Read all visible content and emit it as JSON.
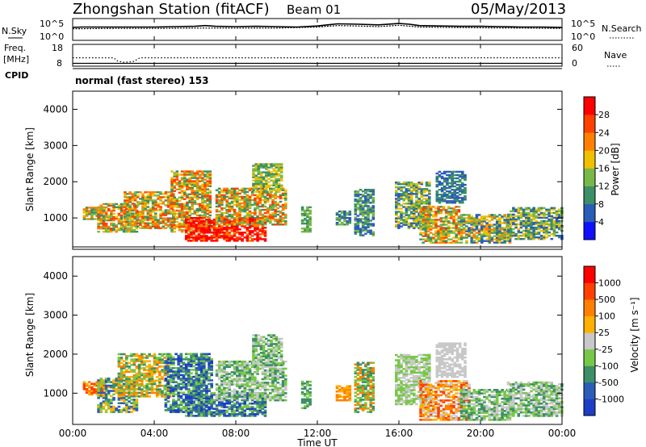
{
  "header": {
    "station": "Zhongshan Station (fitACF)",
    "beam": "Beam 01",
    "date": "05/May/2013"
  },
  "mode_label": "normal (fast stereo) 153",
  "xaxis": {
    "label": "Time UT",
    "ticks": [
      "00:00",
      "04:00",
      "08:00",
      "12:00",
      "16:00",
      "20:00",
      "00:00"
    ],
    "tick_hours": [
      0,
      4,
      8,
      12,
      16,
      20,
      24
    ]
  },
  "chart_data": [
    {
      "type": "line",
      "panel": "noise",
      "left_label": "N.Sky",
      "right_label": "N.Search",
      "left_ticks": [
        "10^5",
        "10^0"
      ],
      "right_ticks": [
        "10^5",
        "10^0"
      ],
      "series": [
        {
          "x": [
            0,
            0.5,
            1,
            2,
            3,
            4,
            5,
            6,
            6.5,
            7,
            8,
            9,
            10,
            11,
            12,
            12.5,
            13,
            14,
            15,
            16,
            16.5,
            17,
            18,
            19,
            20,
            21,
            22,
            23,
            24
          ],
          "y": [
            3.2,
            3.3,
            3.3,
            3.3,
            3.3,
            3.3,
            3.4,
            3.5,
            3.7,
            3.5,
            3.4,
            3.5,
            3.4,
            3.3,
            3.6,
            3.9,
            4.2,
            4.1,
            3.9,
            4.3,
            4.1,
            3.7,
            3.6,
            3.5,
            3.5,
            3.4,
            3.3,
            3.3,
            3.2
          ]
        },
        {
          "x": [
            0,
            2,
            4,
            6,
            8,
            10,
            12,
            13,
            14,
            15,
            16,
            17,
            18,
            20,
            22,
            24
          ],
          "y": [
            2.8,
            2.9,
            2.9,
            3.0,
            3.0,
            3.0,
            3.3,
            3.7,
            3.6,
            3.4,
            3.8,
            3.3,
            3.2,
            3.1,
            3.0,
            2.9
          ]
        }
      ]
    },
    {
      "type": "line",
      "panel": "frequency",
      "left_label": "Freq.",
      "left_unit": "[MHz]",
      "left_ticks": [
        "18",
        "8"
      ],
      "right_label": "Nave",
      "right_ticks": [
        "60",
        "0"
      ],
      "cpid_label": "CPID",
      "series": [
        {
          "name": "freq",
          "x": [
            0,
            2,
            2.2,
            2.5,
            2.8,
            3,
            3.3,
            24
          ],
          "y": [
            11.8,
            11.8,
            10,
            9.3,
            9.5,
            9.8,
            11.8,
            11.8
          ]
        },
        {
          "name": "nave",
          "x": [
            0,
            24
          ],
          "y": [
            4,
            4
          ]
        }
      ]
    },
    {
      "type": "heatmap",
      "panel": "power",
      "ylabel": "Slant Range [km]",
      "yticks": [
        "1000",
        "2000",
        "3000",
        "4000"
      ],
      "ylim": [
        200,
        4500
      ],
      "colorbar_label": "Power [dB]",
      "colorbar_ticks": [
        "4",
        "8",
        "12",
        "16",
        "20",
        "24",
        "28"
      ],
      "colorbar_colors": [
        "#1010ff",
        "#2b5cb8",
        "#3c8f66",
        "#78b848",
        "#f0c000",
        "#ff8000",
        "#ff4000",
        "#ff0000"
      ],
      "blobs": [
        {
          "t0": 0.5,
          "t1": 1.6,
          "r0": 950,
          "r1": 1300,
          "c": [
            3,
            2,
            4,
            5
          ]
        },
        {
          "t0": 1.2,
          "t1": 3.2,
          "r0": 600,
          "r1": 1400,
          "c": [
            4,
            5,
            6,
            3,
            2
          ]
        },
        {
          "t0": 2.5,
          "t1": 5.0,
          "r0": 700,
          "r1": 1700,
          "c": [
            5,
            3,
            2,
            4,
            6
          ]
        },
        {
          "t0": 4.8,
          "t1": 6.8,
          "r0": 600,
          "r1": 2300,
          "c": [
            3,
            4,
            2,
            5,
            6
          ]
        },
        {
          "t0": 5.5,
          "t1": 9.5,
          "r0": 350,
          "r1": 1000,
          "c": [
            7,
            6,
            7,
            5,
            7
          ]
        },
        {
          "t0": 7.0,
          "t1": 10.5,
          "r0": 800,
          "r1": 1800,
          "c": [
            3,
            2,
            4,
            5,
            6
          ]
        },
        {
          "t0": 8.8,
          "t1": 10.3,
          "r0": 1700,
          "r1": 2500,
          "c": [
            3,
            2,
            4
          ]
        },
        {
          "t0": 11.2,
          "t1": 11.6,
          "r0": 600,
          "r1": 1300,
          "c": [
            2,
            3
          ]
        },
        {
          "t0": 12.9,
          "t1": 13.6,
          "r0": 800,
          "r1": 1200,
          "c": [
            1,
            2,
            3
          ]
        },
        {
          "t0": 13.8,
          "t1": 14.8,
          "r0": 500,
          "r1": 1800,
          "c": [
            1,
            2,
            3
          ]
        },
        {
          "t0": 15.8,
          "t1": 17.5,
          "r0": 700,
          "r1": 2000,
          "c": [
            2,
            1,
            3,
            4
          ]
        },
        {
          "t0": 17.0,
          "t1": 19.0,
          "r0": 300,
          "r1": 1300,
          "c": [
            3,
            4,
            5,
            2,
            6
          ]
        },
        {
          "t0": 17.8,
          "t1": 19.2,
          "r0": 1400,
          "r1": 2300,
          "c": [
            1,
            2
          ]
        },
        {
          "t0": 19.0,
          "t1": 21.5,
          "r0": 300,
          "r1": 1100,
          "c": [
            2,
            3,
            4,
            1,
            5
          ]
        },
        {
          "t0": 21.3,
          "t1": 24.0,
          "r0": 400,
          "r1": 1300,
          "c": [
            1,
            2,
            3,
            4
          ]
        }
      ]
    },
    {
      "type": "heatmap",
      "panel": "velocity",
      "ylabel": "Slant Range [km]",
      "yticks": [
        "1000",
        "2000",
        "3000",
        "4000"
      ],
      "ylim": [
        200,
        4500
      ],
      "colorbar_label": "Velocity [m s⁻¹]",
      "colorbar_ticks": [
        "1000",
        "500",
        "100",
        "25",
        "-25",
        "-100",
        "-500",
        "-1000"
      ],
      "colorbar_colors": [
        "#1e3cc8",
        "#2b5cb8",
        "#3c8f66",
        "#78c848",
        "#c8c8c8",
        "#ffb000",
        "#ff8000",
        "#ff4000",
        "#ff0000"
      ],
      "blobs": [
        {
          "t0": 0.5,
          "t1": 1.6,
          "r0": 950,
          "r1": 1300,
          "c": [
            6,
            7,
            5
          ]
        },
        {
          "t0": 1.2,
          "t1": 3.2,
          "r0": 500,
          "r1": 1400,
          "c": [
            5,
            1,
            2,
            3
          ]
        },
        {
          "t0": 2.2,
          "t1": 4.8,
          "r0": 900,
          "r1": 2000,
          "c": [
            6,
            5,
            2,
            3
          ]
        },
        {
          "t0": 4.5,
          "t1": 6.8,
          "r0": 500,
          "r1": 2000,
          "c": [
            0,
            1,
            2,
            3
          ]
        },
        {
          "t0": 5.5,
          "t1": 9.5,
          "r0": 400,
          "r1": 1000,
          "c": [
            2,
            3,
            1,
            0
          ]
        },
        {
          "t0": 7.0,
          "t1": 10.5,
          "r0": 800,
          "r1": 1800,
          "c": [
            4,
            2,
            3
          ]
        },
        {
          "t0": 8.8,
          "t1": 10.3,
          "r0": 1700,
          "r1": 2500,
          "c": [
            2,
            3,
            4
          ]
        },
        {
          "t0": 11.2,
          "t1": 11.6,
          "r0": 600,
          "r1": 1300,
          "c": [
            2,
            3
          ]
        },
        {
          "t0": 12.9,
          "t1": 13.6,
          "r0": 800,
          "r1": 1200,
          "c": [
            6,
            5
          ]
        },
        {
          "t0": 13.8,
          "t1": 14.8,
          "r0": 500,
          "r1": 1800,
          "c": [
            2,
            3,
            6
          ]
        },
        {
          "t0": 15.8,
          "t1": 17.5,
          "r0": 700,
          "r1": 2000,
          "c": [
            4,
            3
          ]
        },
        {
          "t0": 17.0,
          "t1": 19.5,
          "r0": 300,
          "r1": 1300,
          "c": [
            6,
            7,
            5,
            4
          ]
        },
        {
          "t0": 17.8,
          "t1": 19.2,
          "r0": 1400,
          "r1": 2300,
          "c": [
            4
          ]
        },
        {
          "t0": 19.0,
          "t1": 21.5,
          "r0": 300,
          "r1": 1100,
          "c": [
            4,
            3,
            2
          ]
        },
        {
          "t0": 21.3,
          "t1": 24.0,
          "r0": 400,
          "r1": 1300,
          "c": [
            4,
            3,
            2
          ]
        }
      ]
    }
  ]
}
